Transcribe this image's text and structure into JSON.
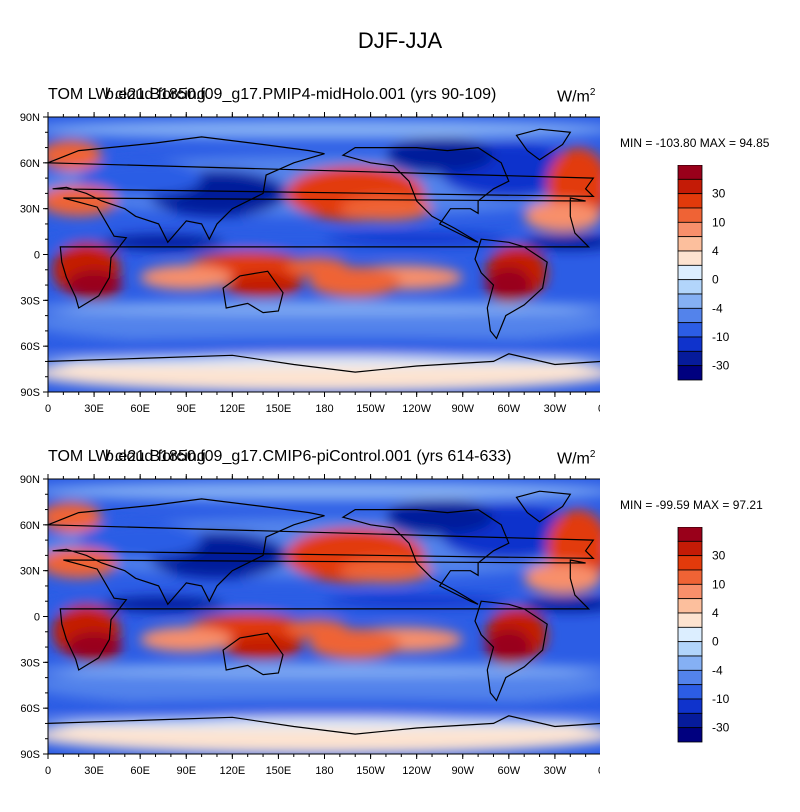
{
  "title": "DJF-JJA",
  "units_base": "W/m",
  "units_exp": "2",
  "x_ticks": [
    "0",
    "30E",
    "60E",
    "90E",
    "120E",
    "150E",
    "180",
    "150W",
    "120W",
    "90W",
    "60W",
    "30W",
    "0"
  ],
  "y_ticks": [
    "90N",
    "60N",
    "30N",
    "0",
    "30S",
    "60S",
    "90S"
  ],
  "colorbar": {
    "colors": [
      "#99001a",
      "#c41b06",
      "#e23a0b",
      "#ef6335",
      "#f88f6b",
      "#fcbf9d",
      "#fde3d0",
      "#dceeff",
      "#b2d5fb",
      "#85b0f4",
      "#5383eb",
      "#2c5de5",
      "#0f33cc",
      "#061b9b",
      "#00007f"
    ],
    "labels": [
      {
        "text": "30",
        "level": 1
      },
      {
        "text": "10",
        "level": 3
      },
      {
        "text": "4",
        "level": 5
      },
      {
        "text": "0",
        "level": 7
      },
      {
        "text": "-4",
        "level": 9
      },
      {
        "text": "-10",
        "level": 11
      },
      {
        "text": "-30",
        "level": 13
      }
    ]
  },
  "panels": [
    {
      "left_label": "TOM LW cloud forcing",
      "center_label": "b.e21.B1850.f09_g17.PMIP4-midHolo.001 (yrs 90-109)",
      "stats": "MIN = -103.80 MAX =  94.85"
    },
    {
      "left_label": "TOM LW cloud forcing",
      "center_label": "b.e21.B1850.f09_g17.CMIP6-piControl.001 (yrs 614-633)",
      "stats": "MIN = -99.59 MAX =  97.21"
    }
  ]
}
